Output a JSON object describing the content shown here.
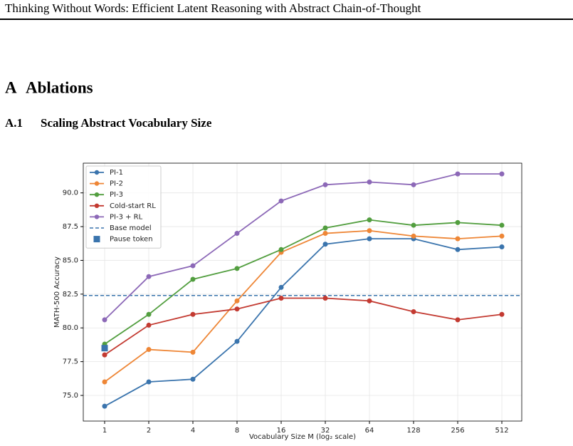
{
  "header": {
    "title": "Thinking Without Words: Efficient Latent Reasoning with Abstract Chain-of-Thought"
  },
  "section": {
    "number": "A",
    "title": "Ablations"
  },
  "subsection": {
    "number": "A.1",
    "title": "Scaling Abstract Vocabulary Size"
  },
  "chart_data": {
    "type": "line",
    "xlabel": "Vocabulary Size M (log₂ scale)",
    "ylabel": "MATH-500 Accuracy",
    "x": [
      1,
      2,
      4,
      8,
      16,
      32,
      64,
      128,
      256,
      512
    ],
    "xscale": "log2",
    "xlim": [
      0.715,
      700
    ],
    "xticks": [
      1,
      2,
      4,
      8,
      16,
      32,
      64,
      128,
      256,
      512
    ],
    "ylim": [
      73.1,
      92.2
    ],
    "yticks": [
      {
        "value": 75,
        "label": "75.0"
      },
      {
        "value": 77.5,
        "label": "77.5"
      },
      {
        "value": 80,
        "label": "80.0"
      },
      {
        "value": 82.5,
        "label": "82.5"
      },
      {
        "value": 85,
        "label": "85.0"
      },
      {
        "value": 87.5,
        "label": "87.5"
      },
      {
        "value": 90,
        "label": "90.0"
      }
    ],
    "grid": true,
    "legend": "upper left",
    "series": [
      {
        "name": "PI-1",
        "color": "#3a74ad",
        "values": [
          74.2,
          76.0,
          76.2,
          79.0,
          83.0,
          86.2,
          86.6,
          86.6,
          85.8,
          86.0
        ]
      },
      {
        "name": "PI-2",
        "color": "#ee8636",
        "values": [
          76.0,
          78.4,
          78.2,
          82.0,
          85.6,
          87.0,
          87.2,
          86.8,
          86.6,
          86.8
        ]
      },
      {
        "name": "PI-3",
        "color": "#529e3f",
        "values": [
          78.8,
          81.0,
          83.6,
          84.4,
          85.8,
          87.4,
          88.0,
          87.6,
          87.8,
          87.6
        ]
      },
      {
        "name": "Cold-start RL",
        "color": "#c33a31",
        "values": [
          78.0,
          80.2,
          81.0,
          81.4,
          82.2,
          82.2,
          82.0,
          81.2,
          80.6,
          81.0
        ]
      },
      {
        "name": "PI-3 + RL",
        "color": "#8c68b7",
        "values": [
          80.6,
          83.8,
          84.6,
          87.0,
          89.4,
          90.6,
          90.8,
          90.6,
          91.4,
          91.4
        ]
      }
    ],
    "reference_line": {
      "name": "Base model",
      "value": 82.4,
      "color": "#3a74ad",
      "style": "dashed"
    },
    "point": {
      "name": "Pause token",
      "x": 1,
      "y": 78.5,
      "color": "#3a74ad",
      "marker": "square"
    }
  }
}
